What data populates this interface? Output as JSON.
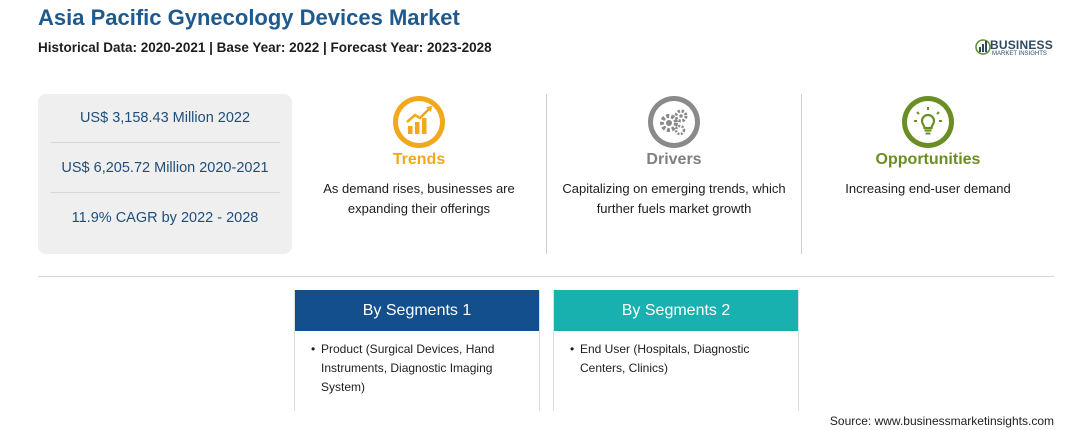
{
  "header": {
    "title": "Asia Pacific Gynecology Devices Market",
    "subtitle": "Historical Data: 2020-2021 | Base Year: 2022 | Forecast Year: 2023-2028"
  },
  "logo": {
    "word": "BUSINESS",
    "tag": "MARKET INSIGHTS",
    "icon": "business-insights-logo-icon"
  },
  "stats": [
    "US$ 3,158.43 Million 2022",
    "US$ 6,205.72 Million 2020-2021",
    "11.9% CAGR by 2022 - 2028"
  ],
  "trends": {
    "title": "Trends",
    "text": "As demand rises, businesses are expanding their offerings",
    "icon": "trending-chart-icon",
    "color": "#f1a81b"
  },
  "drivers": {
    "title": "Drivers",
    "text": "Capitalizing on emerging trends, which further fuels market growth",
    "icon": "gears-icon",
    "color": "#7f7f7f"
  },
  "opportunities": {
    "title": "Opportunities",
    "text": "Increasing end-user demand",
    "icon": "lightbulb-icon",
    "color": "#6b8e23"
  },
  "segments": [
    {
      "title": "By Segments 1",
      "color": "#124f8c",
      "items": [
        "Product (Surgical Devices, Hand Instruments, Diagnostic Imaging System)"
      ]
    },
    {
      "title": "By Segments 2",
      "color": "#19b0b0",
      "items": [
        "End User (Hospitals, Diagnostic Centers, Clinics)"
      ]
    }
  ],
  "source": "Source: www.businessmarketinsights.com"
}
